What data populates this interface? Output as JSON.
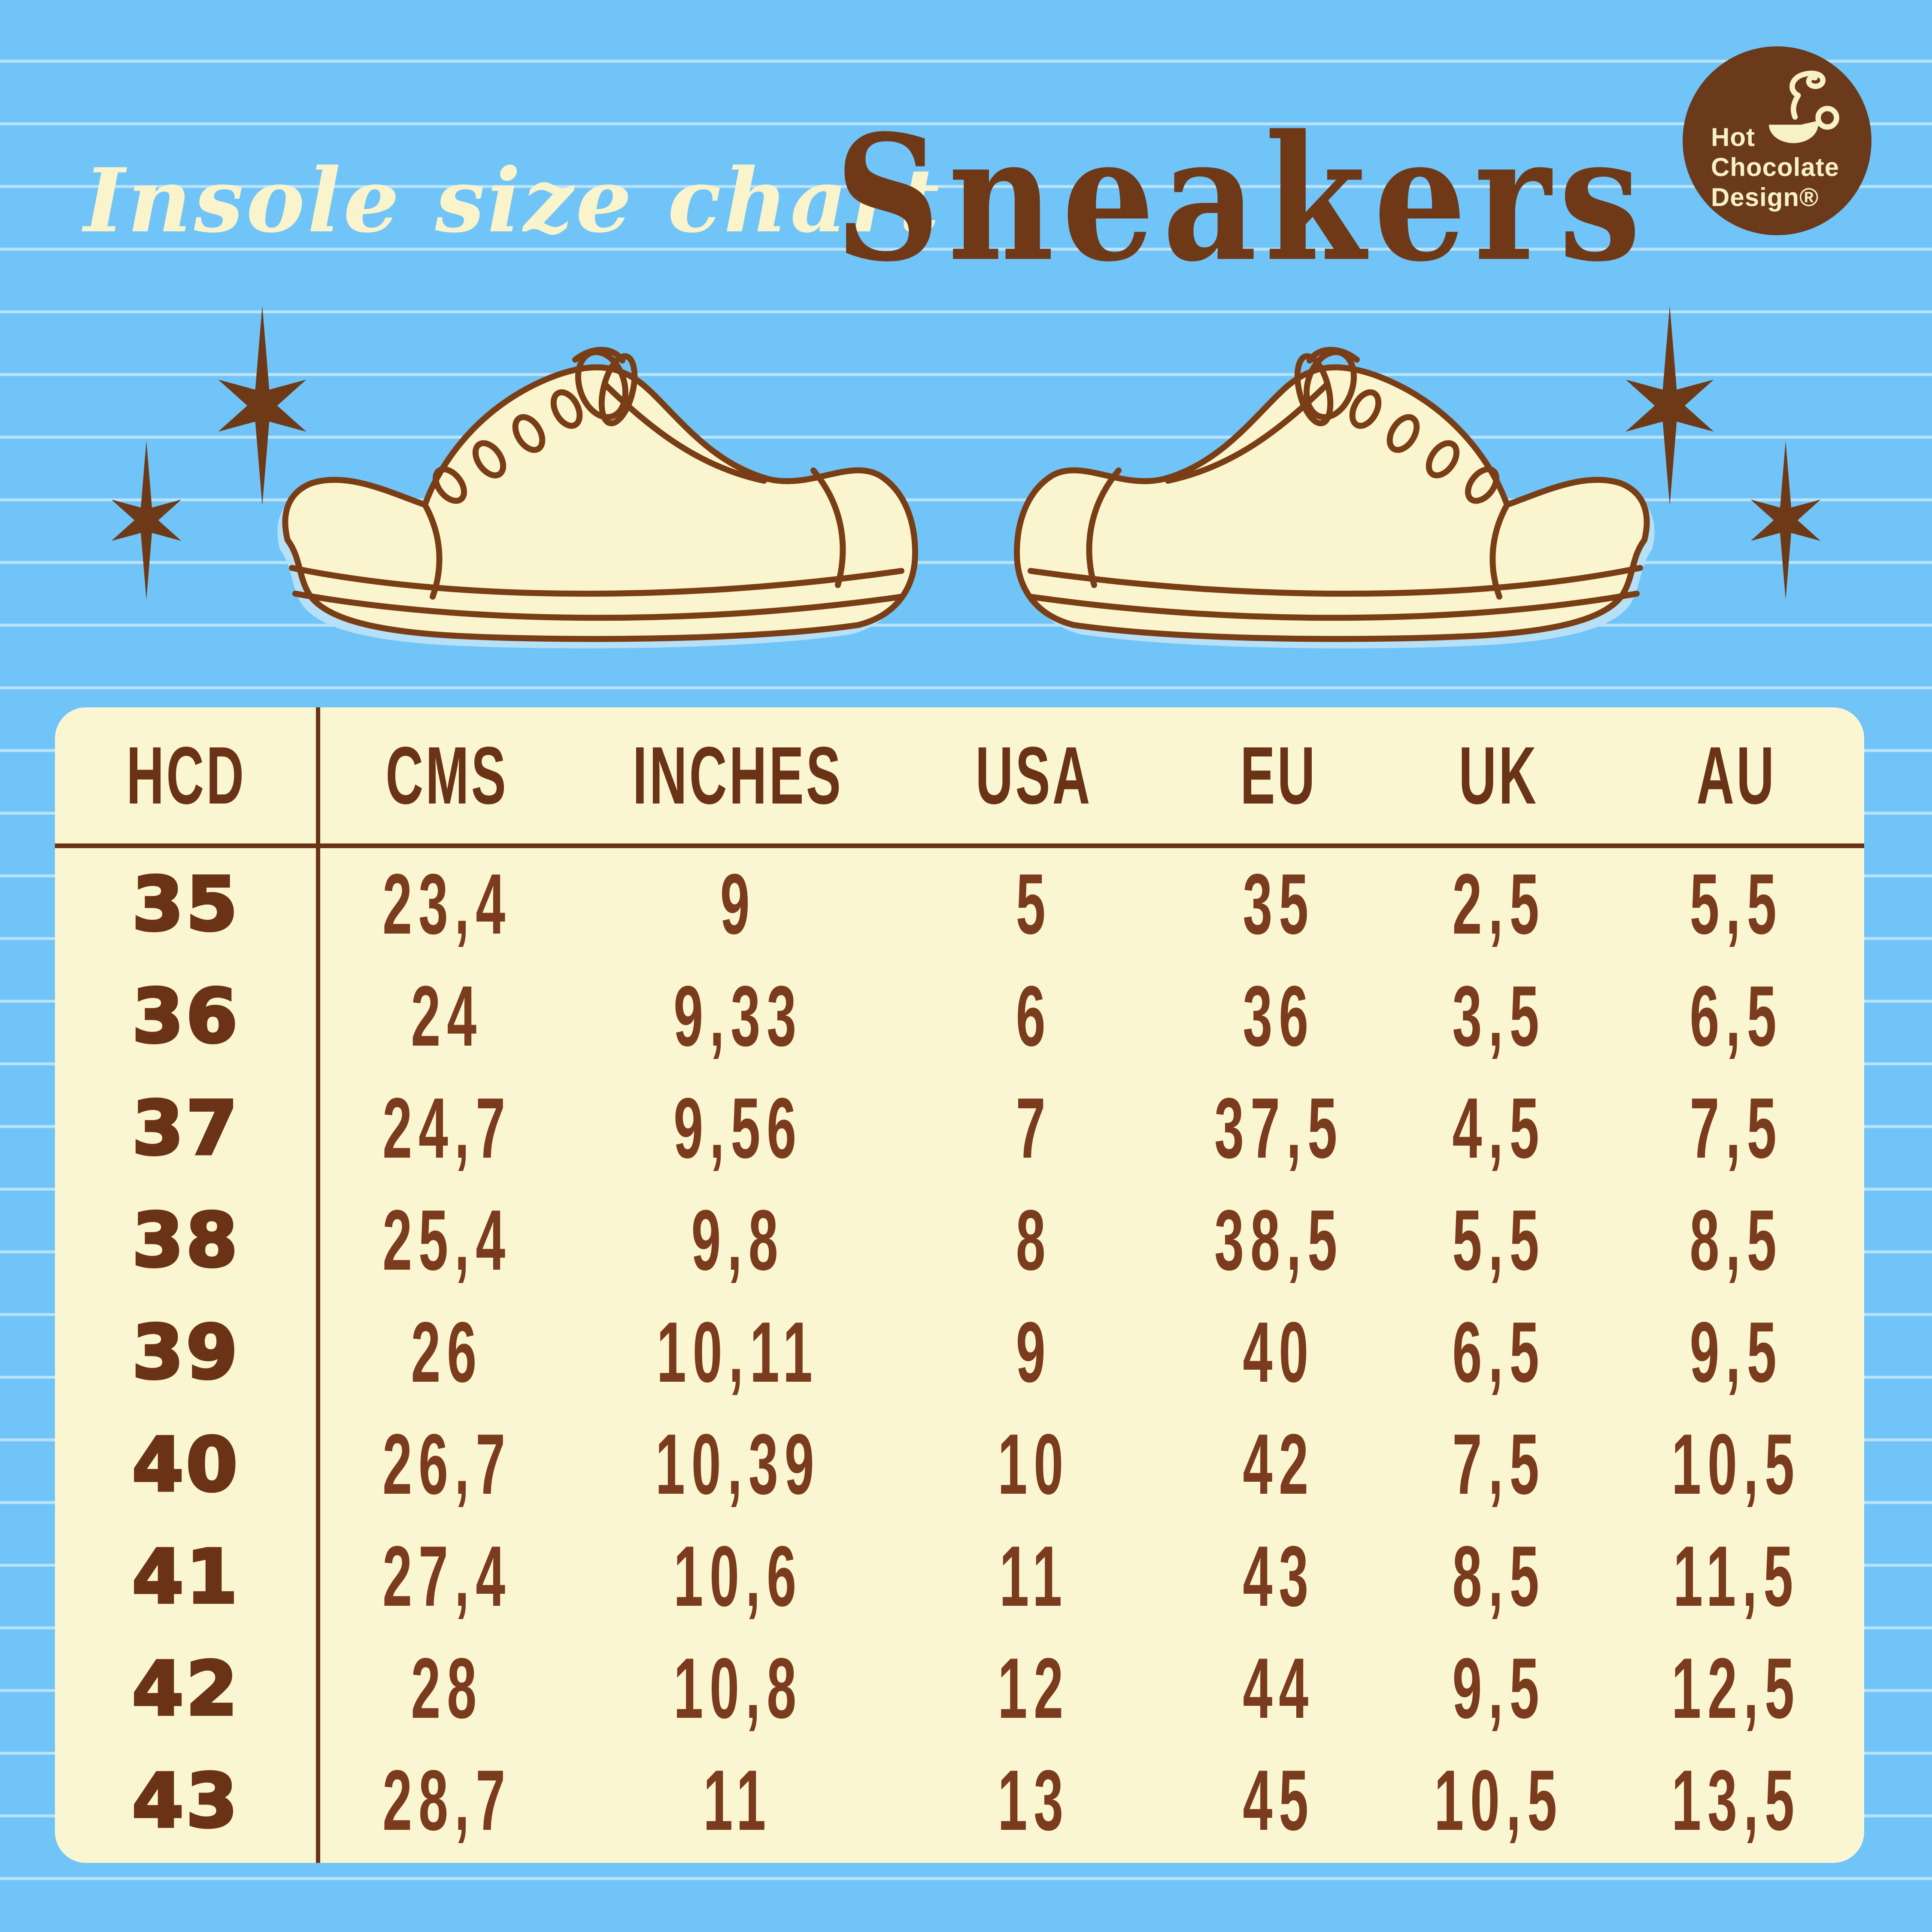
{
  "colors": {
    "background": "#70C4F7",
    "ruled_line": "#C9E9FB",
    "cream": "#FAF4CC",
    "table_background": "#FBF6D2",
    "brown": "#6B3315",
    "number_brown": "#7B3B1D",
    "logo_circle": "#6B3A1B",
    "shoe_shadow": "#B5E0F8"
  },
  "header": {
    "script_title": "Insole size chart",
    "product_title": "Sneakers"
  },
  "logo": {
    "line1": "Hot",
    "line2": "Chocolate",
    "line3": "Design®",
    "icon": "steaming-cup-icon"
  },
  "decor": {
    "stars": [
      "six-point-star",
      "six-point-star",
      "six-point-star",
      "six-point-star"
    ],
    "shoes": [
      "sneaker-left-facing",
      "sneaker-right-facing"
    ]
  },
  "table": {
    "columns": [
      "HCD",
      "CMS",
      "INCHES",
      "USA",
      "EU",
      "UK",
      "AU"
    ],
    "rows": [
      [
        "35",
        "23,4",
        "9",
        "5",
        "35",
        "2,5",
        "5,5"
      ],
      [
        "36",
        "24",
        "9,33",
        "6",
        "36",
        "3,5",
        "6,5"
      ],
      [
        "37",
        "24,7",
        "9,56",
        "7",
        "37,5",
        "4,5",
        "7,5"
      ],
      [
        "38",
        "25,4",
        "9,8",
        "8",
        "38,5",
        "5,5",
        "8,5"
      ],
      [
        "39",
        "26",
        "10,11",
        "9",
        "40",
        "6,5",
        "9,5"
      ],
      [
        "40",
        "26,7",
        "10,39",
        "10",
        "42",
        "7,5",
        "10,5"
      ],
      [
        "41",
        "27,4",
        "10,6",
        "11",
        "43",
        "8,5",
        "11,5"
      ],
      [
        "42",
        "28",
        "10,8",
        "12",
        "44",
        "9,5",
        "12,5"
      ],
      [
        "43",
        "28,7",
        "11",
        "13",
        "45",
        "10,5",
        "13,5"
      ]
    ]
  },
  "chart_data": {
    "type": "table",
    "title": "Insole size chart — Sneakers",
    "columns": [
      "HCD",
      "CMS",
      "INCHES",
      "USA",
      "EU",
      "UK",
      "AU"
    ],
    "rows": [
      [
        "35",
        "23,4",
        "9",
        "5",
        "35",
        "2,5",
        "5,5"
      ],
      [
        "36",
        "24",
        "9,33",
        "6",
        "36",
        "3,5",
        "6,5"
      ],
      [
        "37",
        "24,7",
        "9,56",
        "7",
        "37,5",
        "4,5",
        "7,5"
      ],
      [
        "38",
        "25,4",
        "9,8",
        "8",
        "38,5",
        "5,5",
        "8,5"
      ],
      [
        "39",
        "26",
        "10,11",
        "9",
        "40",
        "6,5",
        "9,5"
      ],
      [
        "40",
        "26,7",
        "10,39",
        "10",
        "42",
        "7,5",
        "10,5"
      ],
      [
        "41",
        "27,4",
        "10,6",
        "11",
        "43",
        "8,5",
        "11,5"
      ],
      [
        "42",
        "28",
        "10,8",
        "12",
        "44",
        "9,5",
        "12,5"
      ],
      [
        "43",
        "28,7",
        "11",
        "13",
        "45",
        "10,5",
        "13,5"
      ]
    ]
  }
}
